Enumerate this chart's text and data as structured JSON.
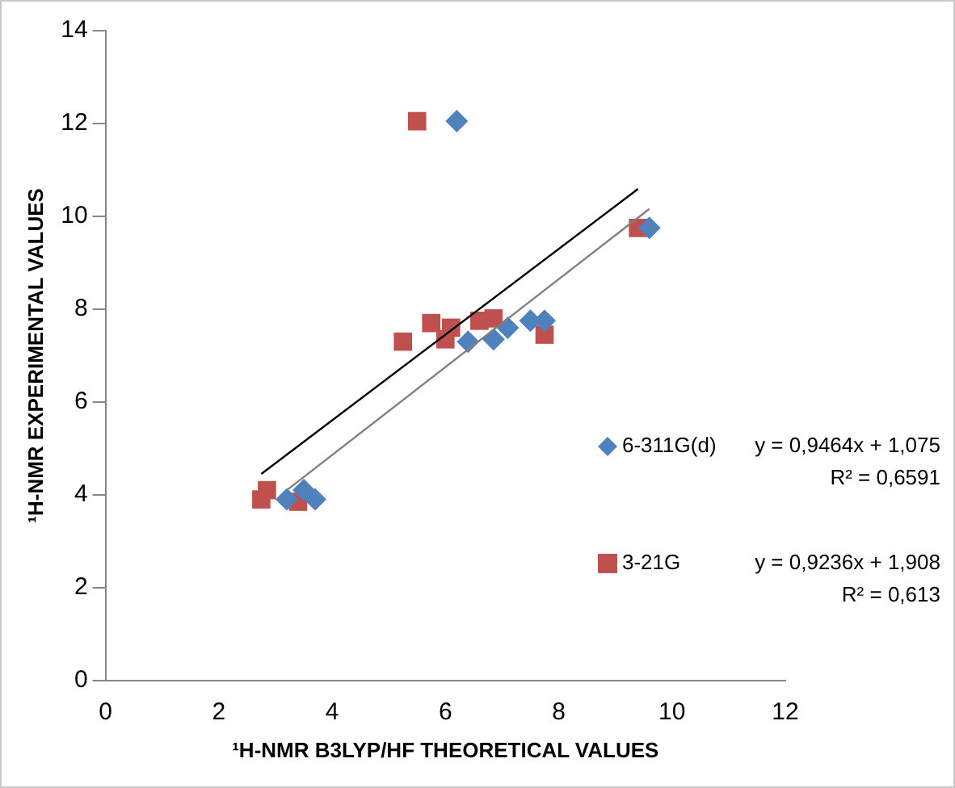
{
  "chart_data": {
    "type": "scatter",
    "xlabel": "¹H-NMR B3LYP/HF THEORETICAL VALUES",
    "ylabel": "¹H-NMR EXPERIMENTAL VALUES",
    "xlim": [
      0,
      12
    ],
    "xticks": [
      0,
      2,
      4,
      6,
      8,
      10,
      12
    ],
    "ylim": [
      0,
      14
    ],
    "yticks": [
      0,
      2,
      4,
      6,
      8,
      10,
      12,
      14
    ],
    "grid": false,
    "legend": "right",
    "series": [
      {
        "name": "6-311G(d)",
        "color": "#4f81bd",
        "marker": "diamond",
        "x": [
          3.2,
          3.5,
          3.7,
          6.2,
          6.4,
          6.85,
          7.1,
          7.4,
          7.5,
          7.75,
          9.6
        ],
        "values": [
          3.9,
          4.1,
          3.9,
          12.05,
          7.3,
          7.35,
          7.6,
          null,
          7.75,
          7.75,
          9.75
        ]
      },
      {
        "name": "3-21G",
        "color": "#c0504d",
        "marker": "square",
        "x": [
          2.75,
          2.85,
          3.4,
          5.5,
          5.25,
          5.75,
          5.85,
          6.0,
          6.1,
          6.6,
          6.85,
          7.75,
          9.4
        ],
        "values": [
          3.9,
          4.1,
          3.85,
          12.05,
          7.3,
          7.7,
          null,
          7.35,
          7.6,
          7.75,
          7.8,
          7.45,
          9.75
        ]
      },
      {
        "type": "line",
        "color": "#808080",
        "marker": "none",
        "x": [
          3.2,
          9.6
        ],
        "values": [
          4.1,
          10.16
        ]
      },
      {
        "type": "line",
        "color": "#000000",
        "marker": "none",
        "x": [
          2.75,
          9.4
        ],
        "values": [
          4.45,
          10.59
        ]
      }
    ],
    "annotations": [
      "y = 0,9464x + 1,075",
      "R² = 0,6591",
      "y = 0,9236x + 1,908",
      "R² = 0,613"
    ]
  }
}
